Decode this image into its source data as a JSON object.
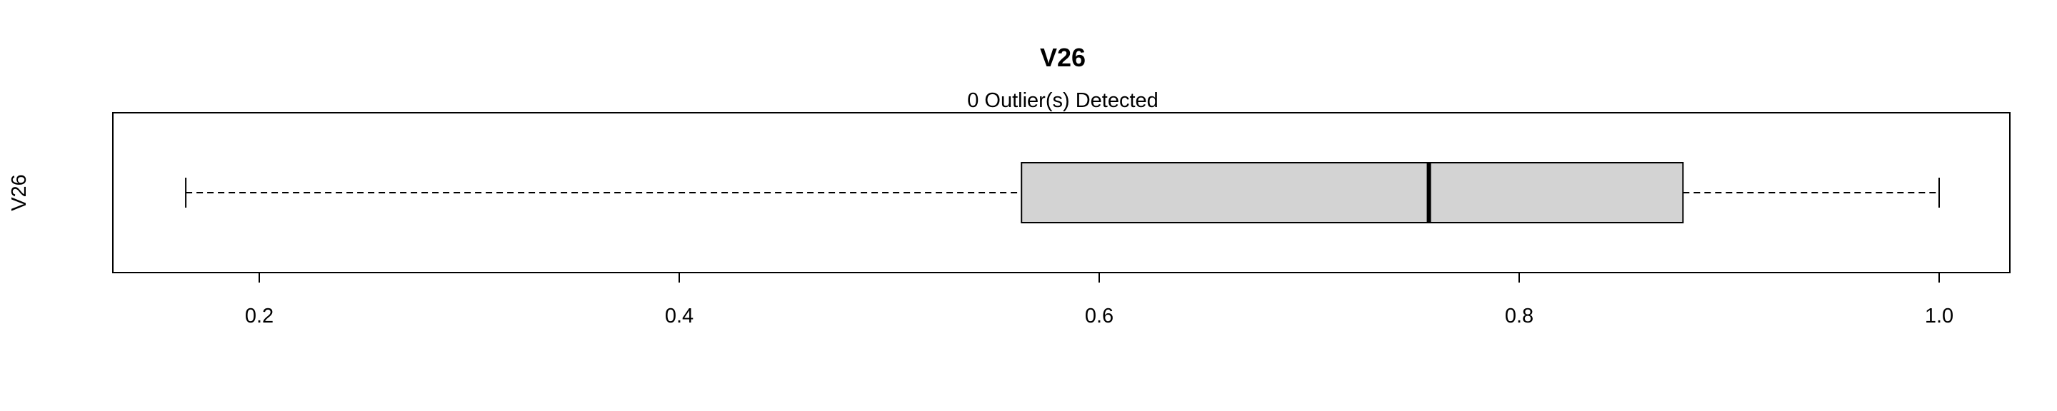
{
  "chart_data": {
    "type": "boxplot",
    "orientation": "horizontal",
    "title": "V26",
    "subtitle": "0 Outlier(s) Detected",
    "ylabel": "V26",
    "xlabel": "",
    "xlim": [
      0.165,
      1.0
    ],
    "xticks": [
      0.2,
      0.4,
      0.6,
      0.8,
      1.0
    ],
    "xtick_labels": [
      "0.2",
      "0.4",
      "0.6",
      "0.8",
      "1.0"
    ],
    "box": {
      "min": 0.165,
      "q1": 0.563,
      "median": 0.757,
      "q3": 0.878,
      "max": 1.0
    },
    "outliers": [],
    "box_fill": "#d3d3d3",
    "stroke_color": "#000000",
    "grid": false,
    "legend": "none"
  }
}
